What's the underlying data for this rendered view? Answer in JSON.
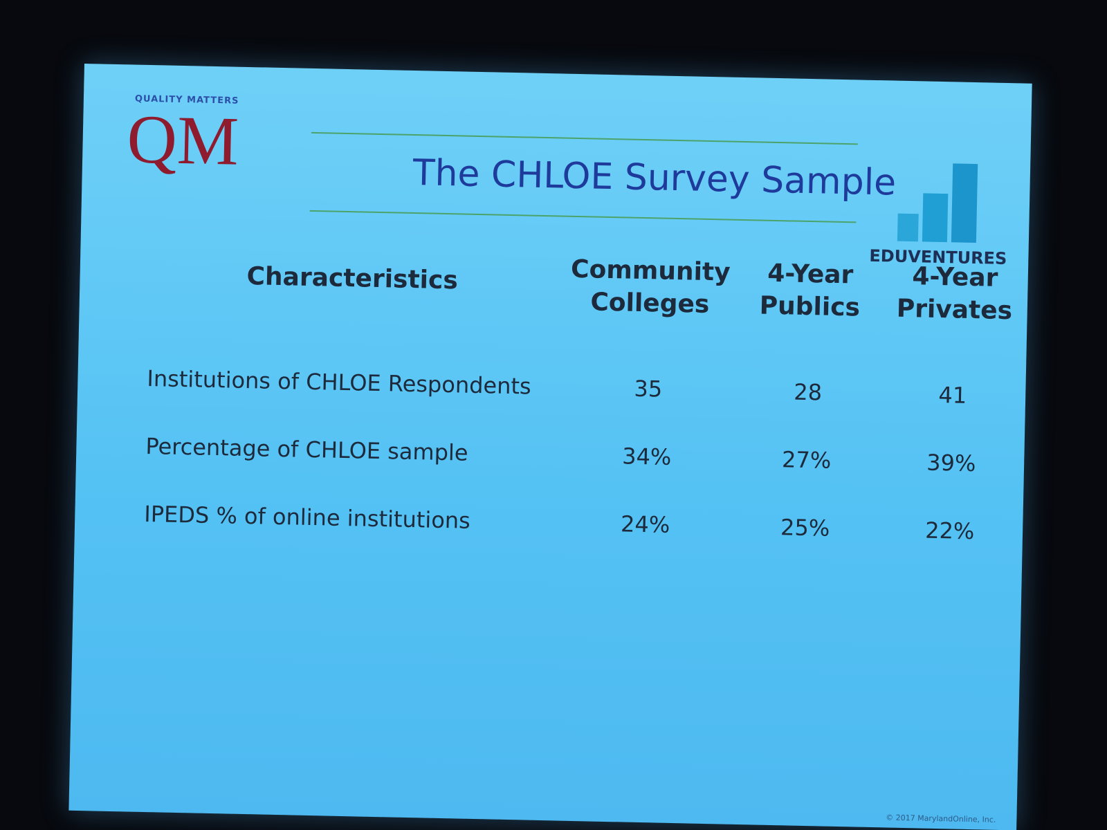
{
  "logo": {
    "tagline": "QUALITY MATTERS",
    "mark": "QM"
  },
  "title": "The CHLOE Survey Sample",
  "brand": "EDUVENTURES",
  "table": {
    "header": [
      "Characteristics",
      "Community Colleges",
      "4-Year Publics",
      "4-Year Privates"
    ],
    "rows": [
      [
        "Institutions of CHLOE Respondents",
        "35",
        "28",
        "41"
      ],
      [
        "Percentage of CHLOE sample",
        "34%",
        "27%",
        "39%"
      ],
      [
        "IPEDS % of online institutions",
        "24%",
        "25%",
        "22%"
      ]
    ]
  },
  "footer": "© 2017 MarylandOnline, Inc."
}
